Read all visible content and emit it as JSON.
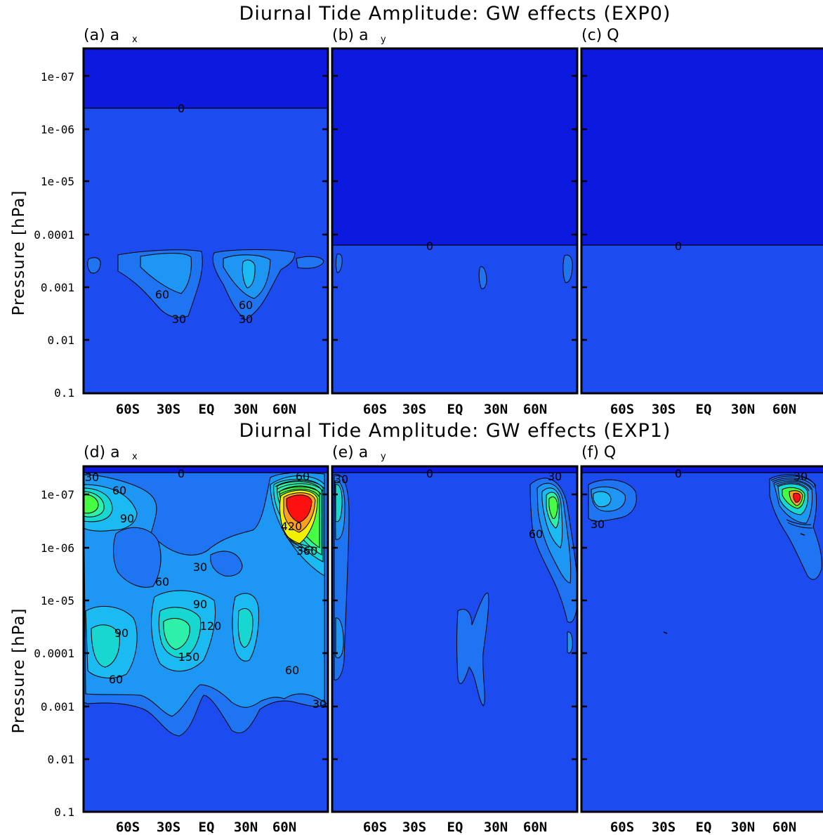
{
  "colors": {
    "background_field": "#1c4cf0",
    "upper_region": "#0c1ae0",
    "level_30": "#1f74f2",
    "level_60": "#1e96f4",
    "level_90": "#1bbaf2",
    "level_120": "#18d6d0",
    "level_150": "#2ef0a8",
    "level_high": "#44ff44",
    "level_yellow": "#f2f000",
    "level_orange": "#ffa020",
    "level_max": "#ff1010",
    "contour_line": "#000000"
  },
  "titles": {
    "top": "Diurnal Tide Amplitude: GW effects (EXP0)",
    "bottom": "Diurnal Tide Amplitude: GW effects (EXP1)"
  },
  "panels": [
    {
      "label": "(a) a",
      "sub": "x"
    },
    {
      "label": "(b) a",
      "sub": "y"
    },
    {
      "label": "(c) Q",
      "sub": ""
    },
    {
      "label": "(d) a",
      "sub": "x"
    },
    {
      "label": "(e) a",
      "sub": "y"
    },
    {
      "label": "(f) Q",
      "sub": ""
    }
  ],
  "axes": {
    "ylabel": "Pressure [hPa]",
    "yticks": [
      "1e-07",
      "1e-06",
      "1e-05",
      "0.0001",
      "0.001",
      "0.01",
      "0.1"
    ],
    "xticks": [
      "60S",
      "30S",
      "EQ",
      "30N",
      "60N"
    ]
  },
  "chart_data": [
    {
      "type": "heatmap",
      "panel": "a",
      "variable": "a_x",
      "experiment": "EXP0",
      "contour_labels": [
        "0",
        "60",
        "30",
        "60",
        "30"
      ],
      "zero_line_pressure_hPa": 4e-07,
      "maxima": [
        {
          "lat": -25,
          "pressure_hPa": 0.0005,
          "value": 75
        },
        {
          "lat": 30,
          "pressure_hPa": 0.0005,
          "value": 80
        }
      ]
    },
    {
      "type": "heatmap",
      "panel": "b",
      "variable": "a_y",
      "experiment": "EXP0",
      "contour_labels": [
        "0"
      ],
      "zero_line_pressure_hPa": 0.00017
    },
    {
      "type": "heatmap",
      "panel": "c",
      "variable": "Q",
      "experiment": "EXP0",
      "contour_labels": [
        "0"
      ],
      "zero_line_pressure_hPa": 0.00017
    },
    {
      "type": "heatmap",
      "panel": "d",
      "variable": "a_x",
      "experiment": "EXP1",
      "contour_labels": [
        "0",
        "30",
        "60",
        "90",
        "60",
        "420",
        "360",
        "30",
        "60",
        "90",
        "120",
        "90",
        "150",
        "60",
        "60",
        "30"
      ],
      "contour_interval": 30,
      "maxima": [
        {
          "lat": 75,
          "pressure_hPa": 1.5e-07,
          "value": 450
        },
        {
          "lat": -30,
          "pressure_hPa": 5e-05,
          "value": 150
        },
        {
          "lat": -80,
          "pressure_hPa": 1.2e-07,
          "value": 130
        },
        {
          "lat": 30,
          "pressure_hPa": 5e-05,
          "value": 120
        }
      ]
    },
    {
      "type": "heatmap",
      "panel": "e",
      "variable": "a_y",
      "experiment": "EXP1",
      "contour_labels": [
        "0",
        "30",
        "30",
        "60"
      ],
      "maxima": [
        {
          "lat": 75,
          "pressure_hPa": 2.5e-07,
          "value": 170
        }
      ]
    },
    {
      "type": "heatmap",
      "panel": "f",
      "variable": "Q",
      "experiment": "EXP1",
      "contour_labels": [
        "0",
        "30",
        "30"
      ],
      "maxima": [
        {
          "lat": 70,
          "pressure_hPa": 1.6e-07,
          "value": 330
        },
        {
          "lat": -70,
          "pressure_hPa": 1.2e-07,
          "value": 80
        }
      ]
    }
  ]
}
